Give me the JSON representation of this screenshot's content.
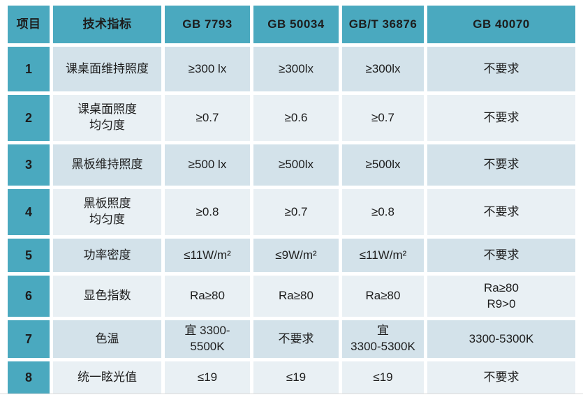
{
  "colors": {
    "header_bg": "#4AA9BF",
    "row_odd_bg": "#D3E2EA",
    "row_even_bg": "#E9F0F4",
    "gap": "#FFFFFF",
    "text": "#1D1D1D"
  },
  "chart_data": {
    "type": "table",
    "title": "",
    "columns": [
      "项目",
      "技术指标",
      "GB 7793",
      "GB 50034",
      "GB/T 36876",
      "GB 40070"
    ],
    "rows": [
      [
        "1",
        "课桌面维持照度",
        "≥300 lx",
        "≥300lx",
        "≥300lx",
        "不要求"
      ],
      [
        "2",
        "课桌面照度\n均匀度",
        "≥0.7",
        "≥0.6",
        "≥0.7",
        "不要求"
      ],
      [
        "3",
        "黑板维持照度",
        "≥500 lx",
        "≥500lx",
        "≥500lx",
        "不要求"
      ],
      [
        "4",
        "黑板照度\n均匀度",
        "≥0.8",
        "≥0.7",
        "≥0.8",
        "不要求"
      ],
      [
        "5",
        "功率密度",
        "≤11W/m²",
        "≤9W/m²",
        "≤11W/m²",
        "不要求"
      ],
      [
        "6",
        "显色指数",
        "Ra≥80",
        "Ra≥80",
        "Ra≥80",
        "Ra≥80\nR9>0"
      ],
      [
        "7",
        "色温",
        "宜 3300-5500K",
        "不要求",
        "宜\n3300-5300K",
        "3300-5300K"
      ],
      [
        "8",
        "统一眩光值",
        "≤19",
        "≤19",
        "≤19",
        "不要求"
      ]
    ]
  }
}
